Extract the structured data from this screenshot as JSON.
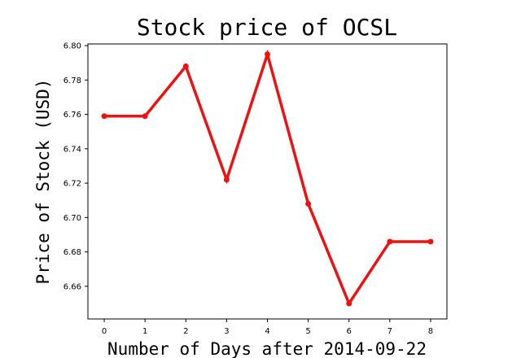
{
  "chart_data": {
    "type": "line",
    "title": "Stock price of OCSL",
    "xlabel": "Number of Days after 2014-09-22",
    "ylabel": "Price of Stock (USD)",
    "x": [
      0,
      1,
      2,
      3,
      4,
      5,
      6,
      7,
      8
    ],
    "series": [
      {
        "values": [
          6.759,
          6.759,
          6.788,
          6.722,
          6.795,
          6.708,
          6.65,
          6.686,
          6.686
        ],
        "color": "#ee1111"
      }
    ],
    "xlim": [
      -0.4,
      8.4
    ],
    "ylim": [
      6.641,
      6.801
    ],
    "xticks": [
      0,
      1,
      2,
      3,
      4,
      5,
      6,
      7,
      8
    ],
    "yticks": [
      6.66,
      6.68,
      6.7,
      6.72,
      6.74,
      6.76,
      6.78,
      6.8
    ],
    "ytick_labels": [
      "6.66",
      "6.68",
      "6.70",
      "6.72",
      "6.74",
      "6.76",
      "6.78",
      "6.80"
    ],
    "grid": false,
    "legend": false
  }
}
